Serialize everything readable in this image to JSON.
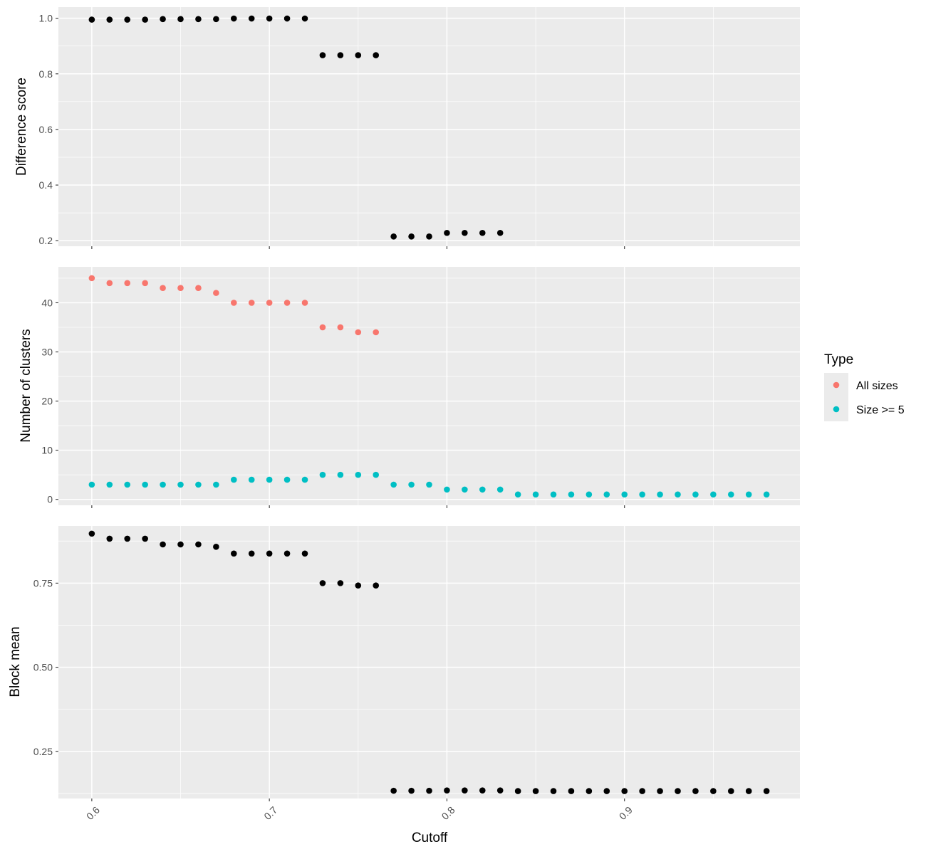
{
  "chart_data": {
    "type": "scatter",
    "x_label": "Cutoff",
    "x_ticks": [
      "0.6",
      "0.7",
      "0.8",
      "0.9"
    ],
    "panels": [
      {
        "ylabel": "Difference score",
        "y_ticks": [
          "0.2",
          "0.4",
          "0.6",
          "0.8",
          "1.0"
        ],
        "ylim": [
          0.18,
          1.04
        ],
        "series": [
          {
            "color": "#000000",
            "x": [
              0.6,
              0.61,
              0.62,
              0.63,
              0.64,
              0.65,
              0.66,
              0.67,
              0.68,
              0.69,
              0.7,
              0.71,
              0.72,
              0.73,
              0.74,
              0.75,
              0.76,
              0.77,
              0.78,
              0.79,
              0.8,
              0.81,
              0.82,
              0.83
            ],
            "y": [
              0.995,
              0.995,
              0.995,
              0.995,
              0.997,
              0.997,
              0.997,
              0.997,
              0.999,
              0.999,
              0.999,
              0.999,
              0.999,
              0.867,
              0.867,
              0.867,
              0.867,
              0.215,
              0.215,
              0.215,
              0.228,
              0.228,
              0.228,
              0.228
            ]
          }
        ]
      },
      {
        "ylabel": "Number of clusters",
        "y_ticks": [
          "0",
          "10",
          "20",
          "30",
          "40"
        ],
        "ylim": [
          -1.2,
          47.3
        ],
        "series": [
          {
            "name": "All sizes",
            "color": "#F8766D",
            "x": [
              0.6,
              0.61,
              0.62,
              0.63,
              0.64,
              0.65,
              0.66,
              0.67,
              0.68,
              0.69,
              0.7,
              0.71,
              0.72,
              0.73,
              0.74,
              0.75,
              0.76
            ],
            "y": [
              45,
              44,
              44,
              44,
              43,
              43,
              43,
              42,
              40,
              40,
              40,
              40,
              40,
              35,
              35,
              34,
              34
            ]
          },
          {
            "name": "Size >= 5",
            "color": "#00BFC4",
            "x": [
              0.6,
              0.61,
              0.62,
              0.63,
              0.64,
              0.65,
              0.66,
              0.67,
              0.68,
              0.69,
              0.7,
              0.71,
              0.72,
              0.73,
              0.74,
              0.75,
              0.76,
              0.77,
              0.78,
              0.79,
              0.8,
              0.81,
              0.82,
              0.83,
              0.84,
              0.85,
              0.86,
              0.87,
              0.88,
              0.89,
              0.9,
              0.91,
              0.92,
              0.93,
              0.94,
              0.95,
              0.96,
              0.97,
              0.98
            ],
            "y": [
              3,
              3,
              3,
              3,
              3,
              3,
              3,
              3,
              4,
              4,
              4,
              4,
              4,
              5,
              5,
              5,
              5,
              3,
              3,
              3,
              2,
              2,
              2,
              2,
              1,
              1,
              1,
              1,
              1,
              1,
              1,
              1,
              1,
              1,
              1,
              1,
              1,
              1,
              1
            ]
          }
        ]
      },
      {
        "ylabel": "Block mean",
        "y_ticks": [
          "0.25",
          "0.50",
          "0.75"
        ],
        "ylim": [
          0.11,
          0.92
        ],
        "series": [
          {
            "color": "#000000",
            "x": [
              0.6,
              0.61,
              0.62,
              0.63,
              0.64,
              0.65,
              0.66,
              0.67,
              0.68,
              0.69,
              0.7,
              0.71,
              0.72,
              0.73,
              0.74,
              0.75,
              0.76,
              0.77,
              0.78,
              0.79,
              0.8,
              0.81,
              0.82,
              0.83,
              0.84,
              0.85,
              0.86,
              0.87,
              0.88,
              0.89,
              0.9,
              0.91,
              0.92,
              0.93,
              0.94,
              0.95,
              0.96,
              0.97,
              0.98
            ],
            "y": [
              0.897,
              0.882,
              0.882,
              0.882,
              0.865,
              0.865,
              0.865,
              0.858,
              0.838,
              0.838,
              0.838,
              0.838,
              0.838,
              0.75,
              0.75,
              0.743,
              0.743,
              0.133,
              0.133,
              0.133,
              0.134,
              0.134,
              0.134,
              0.134,
              0.132,
              0.132,
              0.132,
              0.132,
              0.132,
              0.132,
              0.132,
              0.132,
              0.132,
              0.132,
              0.132,
              0.132,
              0.132,
              0.132,
              0.132
            ]
          }
        ]
      }
    ],
    "legend": {
      "title": "Type",
      "position": "right",
      "items": [
        {
          "label": "All sizes",
          "color": "#F8766D"
        },
        {
          "label": "Size >= 5",
          "color": "#00BFC4"
        }
      ]
    }
  }
}
